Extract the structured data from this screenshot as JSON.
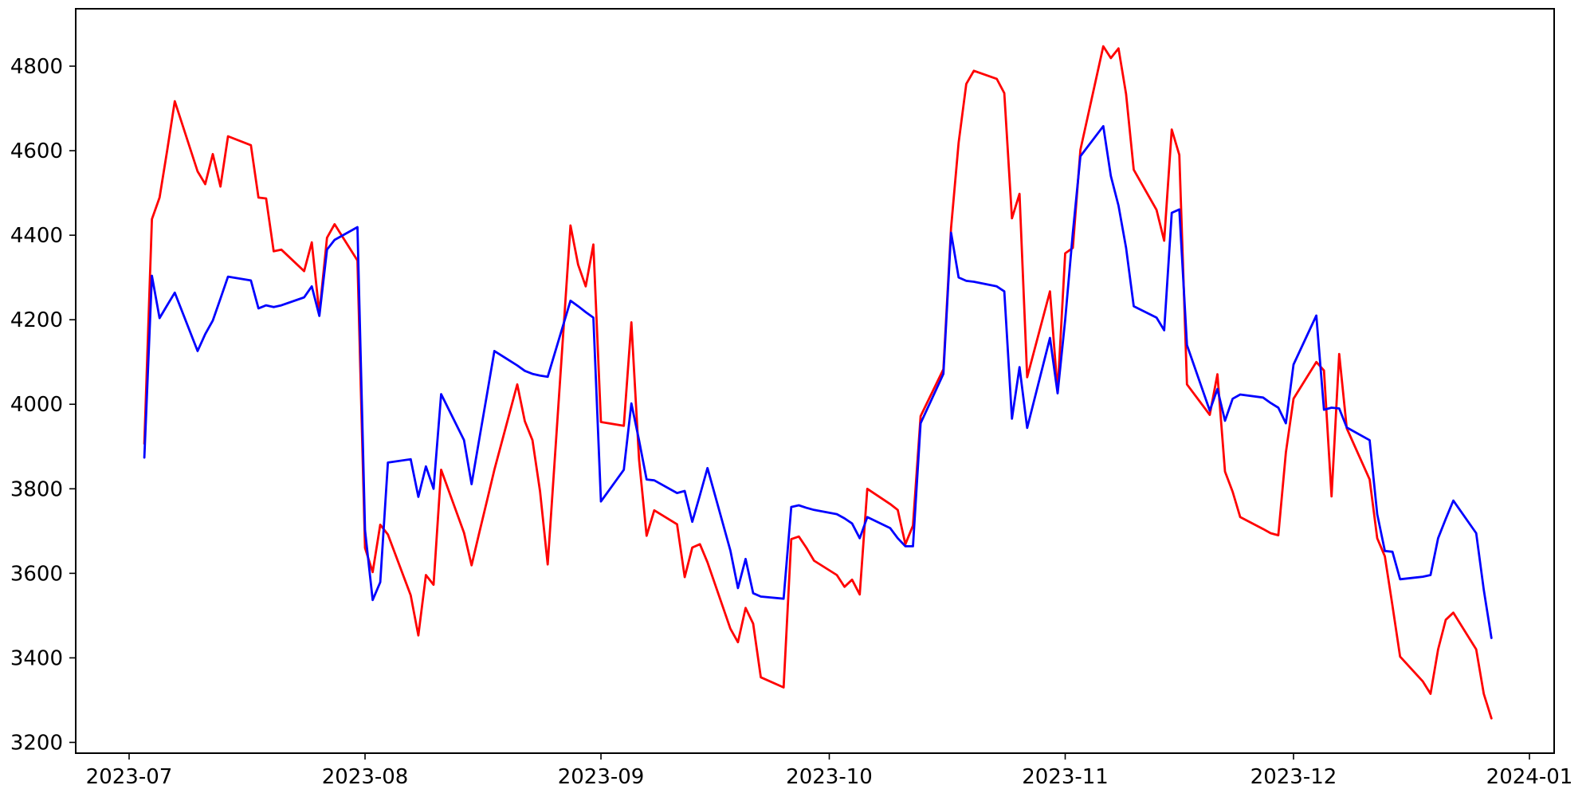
{
  "figure": {
    "background": "#ffffff",
    "title": "",
    "border_color": "#000000"
  },
  "chart_data": {
    "type": "line",
    "title": "",
    "xlabel": "",
    "ylabel": "",
    "grid": false,
    "legend": "none",
    "x_axis": {
      "tick_labels": [
        "2023-07",
        "2023-08",
        "2023-09",
        "2023-10",
        "2023-11",
        "2023-12",
        "2024-01"
      ],
      "tick_dates": [
        "2023-07-01",
        "2023-08-01",
        "2023-09-01",
        "2023-10-01",
        "2023-11-01",
        "2023-12-01",
        "2024-01-01"
      ],
      "range_dates": [
        "2023-06-24",
        "2024-01-04"
      ]
    },
    "y_axis": {
      "ticks": [
        3200,
        3400,
        3600,
        3800,
        4000,
        4200,
        4400,
        4600,
        4800
      ],
      "range": [
        3174,
        4936
      ]
    },
    "dates": [
      "2023-07-03",
      "2023-07-04",
      "2023-07-05",
      "2023-07-06",
      "2023-07-07",
      "2023-07-10",
      "2023-07-11",
      "2023-07-12",
      "2023-07-13",
      "2023-07-14",
      "2023-07-17",
      "2023-07-18",
      "2023-07-19",
      "2023-07-20",
      "2023-07-21",
      "2023-07-24",
      "2023-07-25",
      "2023-07-26",
      "2023-07-27",
      "2023-07-28",
      "2023-07-31",
      "2023-08-01",
      "2023-08-02",
      "2023-08-03",
      "2023-08-04",
      "2023-08-07",
      "2023-08-08",
      "2023-08-09",
      "2023-08-10",
      "2023-08-11",
      "2023-08-14",
      "2023-08-15",
      "2023-08-16",
      "2023-08-17",
      "2023-08-18",
      "2023-08-21",
      "2023-08-22",
      "2023-08-23",
      "2023-08-24",
      "2023-08-25",
      "2023-08-28",
      "2023-08-29",
      "2023-08-30",
      "2023-08-31",
      "2023-09-01",
      "2023-09-04",
      "2023-09-05",
      "2023-09-06",
      "2023-09-07",
      "2023-09-08",
      "2023-09-11",
      "2023-09-12",
      "2023-09-13",
      "2023-09-14",
      "2023-09-15",
      "2023-09-18",
      "2023-09-19",
      "2023-09-20",
      "2023-09-21",
      "2023-09-22",
      "2023-09-25",
      "2023-09-26",
      "2023-09-27",
      "2023-09-28",
      "2023-09-29",
      "2023-10-02",
      "2023-10-03",
      "2023-10-04",
      "2023-10-05",
      "2023-10-06",
      "2023-10-09",
      "2023-10-10",
      "2023-10-11",
      "2023-10-12",
      "2023-10-13",
      "2023-10-16",
      "2023-10-17",
      "2023-10-18",
      "2023-10-19",
      "2023-10-20",
      "2023-10-23",
      "2023-10-24",
      "2023-10-25",
      "2023-10-26",
      "2023-10-27",
      "2023-10-30",
      "2023-10-31",
      "2023-11-01",
      "2023-11-02",
      "2023-11-03",
      "2023-11-06",
      "2023-11-07",
      "2023-11-08",
      "2023-11-09",
      "2023-11-10",
      "2023-11-13",
      "2023-11-14",
      "2023-11-15",
      "2023-11-16",
      "2023-11-17",
      "2023-11-20",
      "2023-11-21",
      "2023-11-22",
      "2023-11-23",
      "2023-11-24",
      "2023-11-27",
      "2023-11-28",
      "2023-11-29",
      "2023-11-30",
      "2023-12-01",
      "2023-12-04",
      "2023-12-05",
      "2023-12-06",
      "2023-12-07",
      "2023-12-08",
      "2023-12-11",
      "2023-12-12",
      "2023-12-13",
      "2023-12-14",
      "2023-12-15",
      "2023-12-18",
      "2023-12-19",
      "2023-12-20",
      "2023-12-21",
      "2023-12-22",
      "2023-12-25",
      "2023-12-26",
      "2023-12-27"
    ],
    "series": [
      {
        "name": "red",
        "color": "#ff0000",
        "values": [
          3907,
          4438,
          4489,
          4600,
          4717,
          4551,
          4521,
          4592,
          4515,
          4634,
          4613,
          4489,
          4487,
          4362,
          4366,
          4315,
          4383,
          4215,
          4394,
          4426,
          4340,
          3660,
          3603,
          3715,
          3692,
          3548,
          3453,
          3596,
          3573,
          3845,
          3696,
          3619,
          3695,
          3770,
          3845,
          4047,
          3960,
          3915,
          3794,
          3621,
          4423,
          4330,
          4279,
          4378,
          3958,
          3949,
          4194,
          3870,
          3689,
          3749,
          3716,
          3591,
          3661,
          3669,
          3626,
          3469,
          3437,
          3518,
          3481,
          3354,
          3330,
          3681,
          3687,
          3660,
          3630,
          3596,
          3568,
          3585,
          3550,
          3800,
          3764,
          3750,
          3669,
          3713,
          3972,
          4083,
          4417,
          4619,
          4758,
          4789,
          4770,
          4736,
          4440,
          4498,
          4064,
          4267,
          4030,
          4357,
          4370,
          4602,
          4847,
          4819,
          4842,
          4734,
          4555,
          4460,
          4387,
          4650,
          4590,
          4047,
          3975,
          4071,
          3841,
          3793,
          3733,
          3705,
          3695,
          3690,
          3886,
          4013,
          4100,
          4080,
          3782,
          4119,
          3943,
          3822,
          3683,
          3640,
          3524,
          3403,
          3344,
          3315,
          3420,
          3490,
          3507,
          3420,
          3315,
          3257
        ]
      },
      {
        "name": "blue",
        "color": "#0000ff",
        "values": [
          3874,
          4304,
          4204,
          4234,
          4264,
          4126,
          4166,
          4198,
          4250,
          4302,
          4293,
          4227,
          4234,
          4230,
          4234,
          4253,
          4279,
          4209,
          4366,
          4389,
          4419,
          3702,
          3537,
          3579,
          3862,
          3870,
          3781,
          3853,
          3800,
          4024,
          3915,
          3811,
          3916,
          4021,
          4126,
          4092,
          4079,
          4072,
          4068,
          4065,
          4245,
          4232,
          4218,
          4205,
          3770,
          3845,
          4002,
          3915,
          3822,
          3820,
          3790,
          3795,
          3722,
          3785,
          3849,
          3654,
          3565,
          3634,
          3553,
          3545,
          3540,
          3757,
          3761,
          3755,
          3750,
          3740,
          3730,
          3718,
          3683,
          3733,
          3707,
          3683,
          3664,
          3664,
          3955,
          4072,
          4406,
          4300,
          4292,
          4290,
          4279,
          4267,
          3966,
          4088,
          3944,
          4157,
          4026,
          4200,
          4406,
          4587,
          4658,
          4540,
          4470,
          4370,
          4232,
          4205,
          4175,
          4453,
          4461,
          4140,
          3985,
          4036,
          3961,
          4013,
          4023,
          4016,
          4003,
          3992,
          3955,
          4094,
          4210,
          3987,
          3992,
          3990,
          3945,
          3915,
          3740,
          3653,
          3651,
          3586,
          3592,
          3596,
          3683,
          3729,
          3772,
          3695,
          3561,
          3447
        ]
      }
    ]
  }
}
